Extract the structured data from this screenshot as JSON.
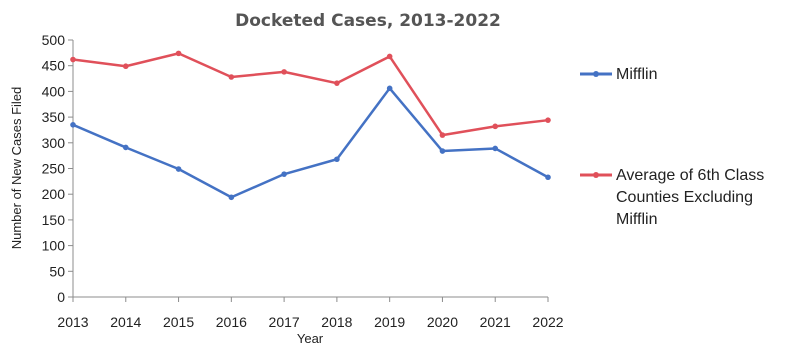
{
  "chart_data": {
    "type": "line",
    "title": "Docketed Cases, 2013-2022",
    "xlabel": "Year",
    "ylabel": "Number of New Cases Filed",
    "x": [
      "2013",
      "2014",
      "2015",
      "2016",
      "2017",
      "2018",
      "2019",
      "2020",
      "2021",
      "2022"
    ],
    "ylim": [
      0,
      500
    ],
    "yticks": [
      0,
      50,
      100,
      150,
      200,
      250,
      300,
      350,
      400,
      450,
      500
    ],
    "grid": false,
    "legend_position": "right",
    "series": [
      {
        "name": "Mifflin",
        "color": "#4472c4",
        "values": [
          335,
          291,
          249,
          194,
          239,
          268,
          406,
          284,
          289,
          233
        ]
      },
      {
        "name": "Average of 6th Class Counties Excluding Mifflin",
        "legend_lines": [
          "Average of 6th Class",
          "Counties Excluding",
          "Mifflin"
        ],
        "color": "#e0505a",
        "values": [
          462,
          449,
          474,
          428,
          438,
          416,
          468,
          315,
          332,
          344
        ]
      }
    ]
  }
}
